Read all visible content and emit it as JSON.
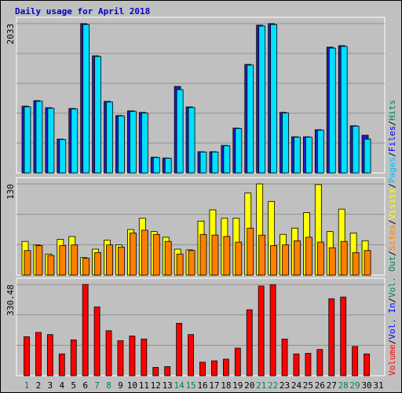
{
  "header": {
    "title": "Daily usage for April 2018"
  },
  "side_legend": {
    "separator": "/",
    "items": [
      {
        "label": "Volume",
        "color": "#ff0000"
      },
      {
        "label": "Vol. In",
        "color": "#0000ff"
      },
      {
        "label": "Vol. Out",
        "color": "#00805c"
      },
      {
        "label": "Sites",
        "color": "#ff8000"
      },
      {
        "label": "Visits",
        "color": "#ffff00"
      },
      {
        "label": "Pages",
        "color": "#00c0ff"
      },
      {
        "label": "Files",
        "color": "#0000ff"
      },
      {
        "label": "Hits",
        "color": "#00805c"
      }
    ]
  },
  "chart_data": [
    {
      "type": "bar",
      "categories": [
        "1",
        "2",
        "3",
        "4",
        "5",
        "6",
        "7",
        "8",
        "9",
        "10",
        "11",
        "12",
        "13",
        "14",
        "15",
        "16",
        "17",
        "18",
        "19",
        "20",
        "21",
        "22",
        "23",
        "24",
        "25",
        "26",
        "27",
        "28",
        "29",
        "30",
        "31"
      ],
      "ylim": [
        0,
        2033
      ],
      "yticks": [
        2033
      ],
      "series": [
        {
          "name": "Files",
          "color": "#2020c0",
          "values": [
            909,
            984,
            888,
            460,
            877,
            2033,
            1594,
            974,
            781,
            845,
            824,
            214,
            203,
            1177,
            899,
            289,
            289,
            374,
            610,
            1477,
            2012,
            2033,
            824,
            492,
            492,
            588,
            1712,
            1733,
            642,
            513,
            null
          ]
        },
        {
          "name": "Pages",
          "color": "#00e0ff",
          "values": [
            900,
            975,
            880,
            455,
            870,
            2020,
            1585,
            965,
            775,
            838,
            816,
            210,
            200,
            1134,
            890,
            285,
            285,
            370,
            605,
            1468,
            2000,
            2020,
            816,
            487,
            487,
            582,
            1700,
            1722,
            636,
            460,
            null
          ]
        }
      ]
    },
    {
      "type": "bar",
      "categories": [
        "1",
        "2",
        "3",
        "4",
        "5",
        "6",
        "7",
        "8",
        "9",
        "10",
        "11",
        "12",
        "13",
        "14",
        "15",
        "16",
        "17",
        "18",
        "19",
        "20",
        "21",
        "22",
        "23",
        "24",
        "25",
        "26",
        "27",
        "28",
        "29",
        "30",
        "31"
      ],
      "ylim": [
        0,
        130
      ],
      "yticks": [
        130
      ],
      "series": [
        {
          "name": "Visits",
          "color": "#ffff00",
          "values": [
            48,
            43,
            30,
            51,
            55,
            25,
            37,
            50,
            43,
            65,
            81,
            62,
            54,
            37,
            36,
            77,
            93,
            81,
            81,
            117,
            130,
            105,
            58,
            67,
            89,
            129,
            62,
            94,
            60,
            49,
            null
          ]
        },
        {
          "name": "Sites",
          "color": "#ff8000",
          "values": [
            35,
            42,
            28,
            42,
            43,
            24,
            32,
            43,
            40,
            60,
            64,
            58,
            48,
            30,
            35,
            58,
            57,
            55,
            47,
            67,
            57,
            42,
            43,
            49,
            54,
            47,
            39,
            48,
            32,
            35,
            null
          ]
        }
      ]
    },
    {
      "type": "bar",
      "categories": [
        "1",
        "2",
        "3",
        "4",
        "5",
        "6",
        "7",
        "8",
        "9",
        "10",
        "11",
        "12",
        "13",
        "14",
        "15",
        "16",
        "17",
        "18",
        "19",
        "20",
        "21",
        "22",
        "23",
        "24",
        "25",
        "26",
        "27",
        "28",
        "29",
        "30",
        "31"
      ],
      "category_colors": [
        "#00805c",
        "#000000",
        "#000000",
        "#000000",
        "#000000",
        "#000000",
        "#00805c",
        "#00805c",
        "#000000",
        "#000000",
        "#000000",
        "#000000",
        "#000000",
        "#00805c",
        "#00805c",
        "#000000",
        "#000000",
        "#000000",
        "#000000",
        "#000000",
        "#00805c",
        "#00805c",
        "#000000",
        "#000000",
        "#000000",
        "#000000",
        "#000000",
        "#00805c",
        "#00805c",
        "#000000",
        "#000000"
      ],
      "ylim": [
        0,
        330.48
      ],
      "yticks": [
        330.48
      ],
      "series": [
        {
          "name": "Volume",
          "color": "#ff0000",
          "values": [
            141,
            157,
            149,
            79,
            130,
            330.48,
            249,
            163,
            127,
            144,
            133,
            30,
            33,
            190,
            149,
            49,
            54,
            60,
            100,
            239,
            325,
            330,
            133,
            79,
            81,
            95,
            279,
            285,
            106,
            79,
            null
          ]
        }
      ]
    }
  ]
}
